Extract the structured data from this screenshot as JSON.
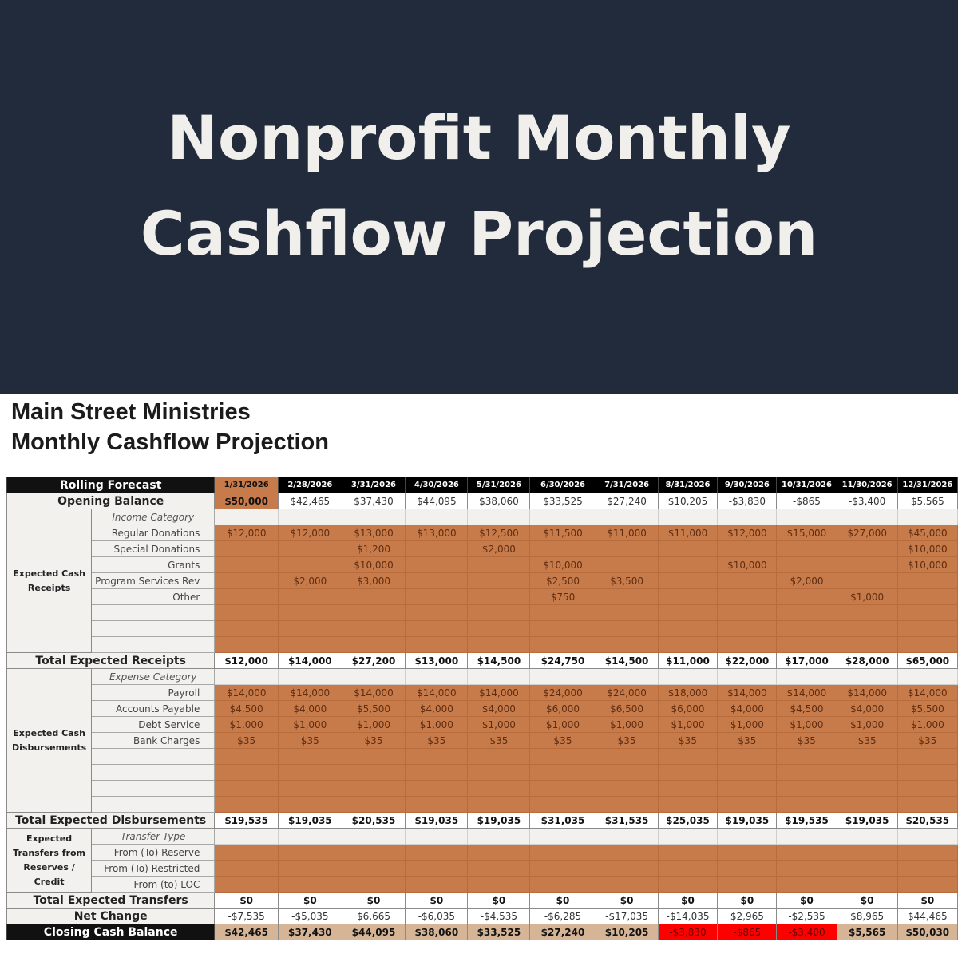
{
  "banner": {
    "line1": "Nonprofit Monthly",
    "line2": "Cashflow Projection"
  },
  "sheet": {
    "org_name": "Main Street Ministries",
    "title": "Monthly Cashflow Projection"
  },
  "colors": {
    "banner_bg": "#212b3b",
    "cell_fill": "#c87b4a",
    "negative_fill": "#ff0000",
    "closing_fill": "#d6b597"
  },
  "table": {
    "header_label": "Rolling Forecast",
    "dates": [
      "1/31/2026",
      "2/28/2026",
      "3/31/2026",
      "4/30/2026",
      "5/31/2026",
      "6/30/2026",
      "7/31/2026",
      "8/31/2026",
      "9/30/2026",
      "10/31/2026",
      "11/30/2026",
      "12/31/2026"
    ],
    "opening": {
      "label": "Opening Balance",
      "values": [
        "$50,000",
        "$42,465",
        "$37,430",
        "$44,095",
        "$38,060",
        "$33,525",
        "$27,240",
        "$10,205",
        "-$3,830",
        "-$865",
        "-$3,400",
        "$5,565"
      ]
    },
    "receipts": {
      "group_label": "Expected Cash Receipts",
      "category_label": "Income Category",
      "rows": [
        {
          "label": "Regular Donations",
          "values": [
            "$12,000",
            "$12,000",
            "$13,000",
            "$13,000",
            "$12,500",
            "$11,500",
            "$11,000",
            "$11,000",
            "$12,000",
            "$15,000",
            "$27,000",
            "$45,000"
          ]
        },
        {
          "label": "Special Donations",
          "values": [
            "",
            "",
            "$1,200",
            "",
            "$2,000",
            "",
            "",
            "",
            "",
            "",
            "",
            "$10,000"
          ]
        },
        {
          "label": "Grants",
          "values": [
            "",
            "",
            "$10,000",
            "",
            "",
            "$10,000",
            "",
            "",
            "$10,000",
            "",
            "",
            "$10,000"
          ]
        },
        {
          "label": "Program Services Rev",
          "values": [
            "",
            "$2,000",
            "$3,000",
            "",
            "",
            "$2,500",
            "$3,500",
            "",
            "",
            "$2,000",
            "",
            ""
          ]
        },
        {
          "label": "Other",
          "values": [
            "",
            "",
            "",
            "",
            "",
            "$750",
            "",
            "",
            "",
            "",
            "$1,000",
            ""
          ]
        }
      ],
      "total_label": "Total Expected Receipts",
      "totals": [
        "$12,000",
        "$14,000",
        "$27,200",
        "$13,000",
        "$14,500",
        "$24,750",
        "$14,500",
        "$11,000",
        "$22,000",
        "$17,000",
        "$28,000",
        "$65,000"
      ]
    },
    "disbursements": {
      "group_label": "Expected Cash Disbursements",
      "category_label": "Expense Category",
      "rows": [
        {
          "label": "Payroll",
          "values": [
            "$14,000",
            "$14,000",
            "$14,000",
            "$14,000",
            "$14,000",
            "$24,000",
            "$24,000",
            "$18,000",
            "$14,000",
            "$14,000",
            "$14,000",
            "$14,000"
          ]
        },
        {
          "label": "Accounts Payable",
          "values": [
            "$4,500",
            "$4,000",
            "$5,500",
            "$4,000",
            "$4,000",
            "$6,000",
            "$6,500",
            "$6,000",
            "$4,000",
            "$4,500",
            "$4,000",
            "$5,500"
          ]
        },
        {
          "label": "Debt Service",
          "values": [
            "$1,000",
            "$1,000",
            "$1,000",
            "$1,000",
            "$1,000",
            "$1,000",
            "$1,000",
            "$1,000",
            "$1,000",
            "$1,000",
            "$1,000",
            "$1,000"
          ]
        },
        {
          "label": "Bank Charges",
          "values": [
            "$35",
            "$35",
            "$35",
            "$35",
            "$35",
            "$35",
            "$35",
            "$35",
            "$35",
            "$35",
            "$35",
            "$35"
          ]
        }
      ],
      "total_label": "Total Expected Disbursements",
      "totals": [
        "$19,535",
        "$19,035",
        "$20,535",
        "$19,035",
        "$19,035",
        "$31,035",
        "$31,535",
        "$25,035",
        "$19,035",
        "$19,535",
        "$19,035",
        "$20,535"
      ]
    },
    "transfers": {
      "group_label": "Expected Transfers from Reserves / Credit",
      "category_label": "Transfer Type",
      "rows": [
        {
          "label": "From (To) Reserve"
        },
        {
          "label": "From (To) Restricted"
        },
        {
          "label": "From (to) LOC"
        }
      ],
      "total_label": "Total Expected Transfers",
      "totals": [
        "$0",
        "$0",
        "$0",
        "$0",
        "$0",
        "$0",
        "$0",
        "$0",
        "$0",
        "$0",
        "$0",
        "$0"
      ]
    },
    "net_change": {
      "label": "Net Change",
      "values": [
        "-$7,535",
        "-$5,035",
        "$6,665",
        "-$6,035",
        "-$4,535",
        "-$6,285",
        "-$17,035",
        "-$14,035",
        "$2,965",
        "-$2,535",
        "$8,965",
        "$44,465"
      ]
    },
    "closing": {
      "label": "Closing Cash Balance",
      "values": [
        "$42,465",
        "$37,430",
        "$44,095",
        "$38,060",
        "$33,525",
        "$27,240",
        "$10,205",
        "-$3,830",
        "-$865",
        "-$3,400",
        "$5,565",
        "$50,030"
      ]
    }
  }
}
